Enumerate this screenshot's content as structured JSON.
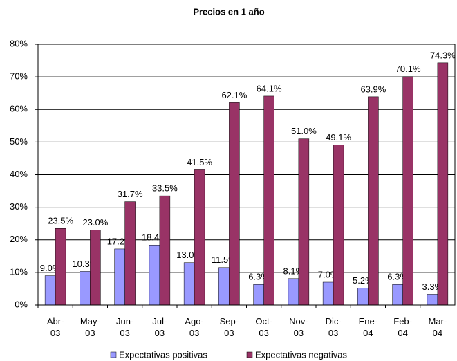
{
  "chart_data": {
    "type": "bar",
    "title": "Precios en 1 año",
    "categories": [
      "Abr-03",
      "May-03",
      "Jun-03",
      "Jul-03",
      "Ago-03",
      "Sep-03",
      "Oct-03",
      "Nov-03",
      "Dic-03",
      "Ene-04",
      "Feb-04",
      "Mar-04"
    ],
    "series": [
      {
        "name": "Expectativas positivas",
        "color": "#9999ff",
        "values": [
          9.0,
          10.3,
          17.2,
          18.4,
          13.0,
          11.5,
          6.3,
          8.1,
          7.0,
          5.2,
          6.3,
          3.3
        ],
        "value_labels": [
          "9.0%",
          "10.3%",
          "17.2%",
          "18.4%",
          "13.0%",
          "11.5%",
          "6.3%",
          "8.1%",
          "7.0%",
          "5.2%",
          "6.3%",
          "3.3%"
        ]
      },
      {
        "name": "Expectativas negativas",
        "color": "#993366",
        "values": [
          23.5,
          23.0,
          31.7,
          33.5,
          41.5,
          62.1,
          64.1,
          51.0,
          49.1,
          63.9,
          70.1,
          74.3
        ],
        "value_labels": [
          "23.5%",
          "23.0%",
          "31.7%",
          "33.5%",
          "41.5%",
          "62.1%",
          "64.1%",
          "51.0%",
          "49.1%",
          "63.9%",
          "70.1%",
          "74.3%"
        ]
      }
    ],
    "ylim": [
      0,
      80
    ],
    "yticks": [
      {
        "value": 0,
        "label": "0%"
      },
      {
        "value": 10,
        "label": "10%"
      },
      {
        "value": 20,
        "label": "20%"
      },
      {
        "value": 30,
        "label": "30%"
      },
      {
        "value": 40,
        "label": "40%"
      },
      {
        "value": 50,
        "label": "50%"
      },
      {
        "value": 60,
        "label": "60%"
      },
      {
        "value": 70,
        "label": "70%"
      },
      {
        "value": 80,
        "label": "80%"
      }
    ],
    "grid": true,
    "legend": "bottom"
  }
}
